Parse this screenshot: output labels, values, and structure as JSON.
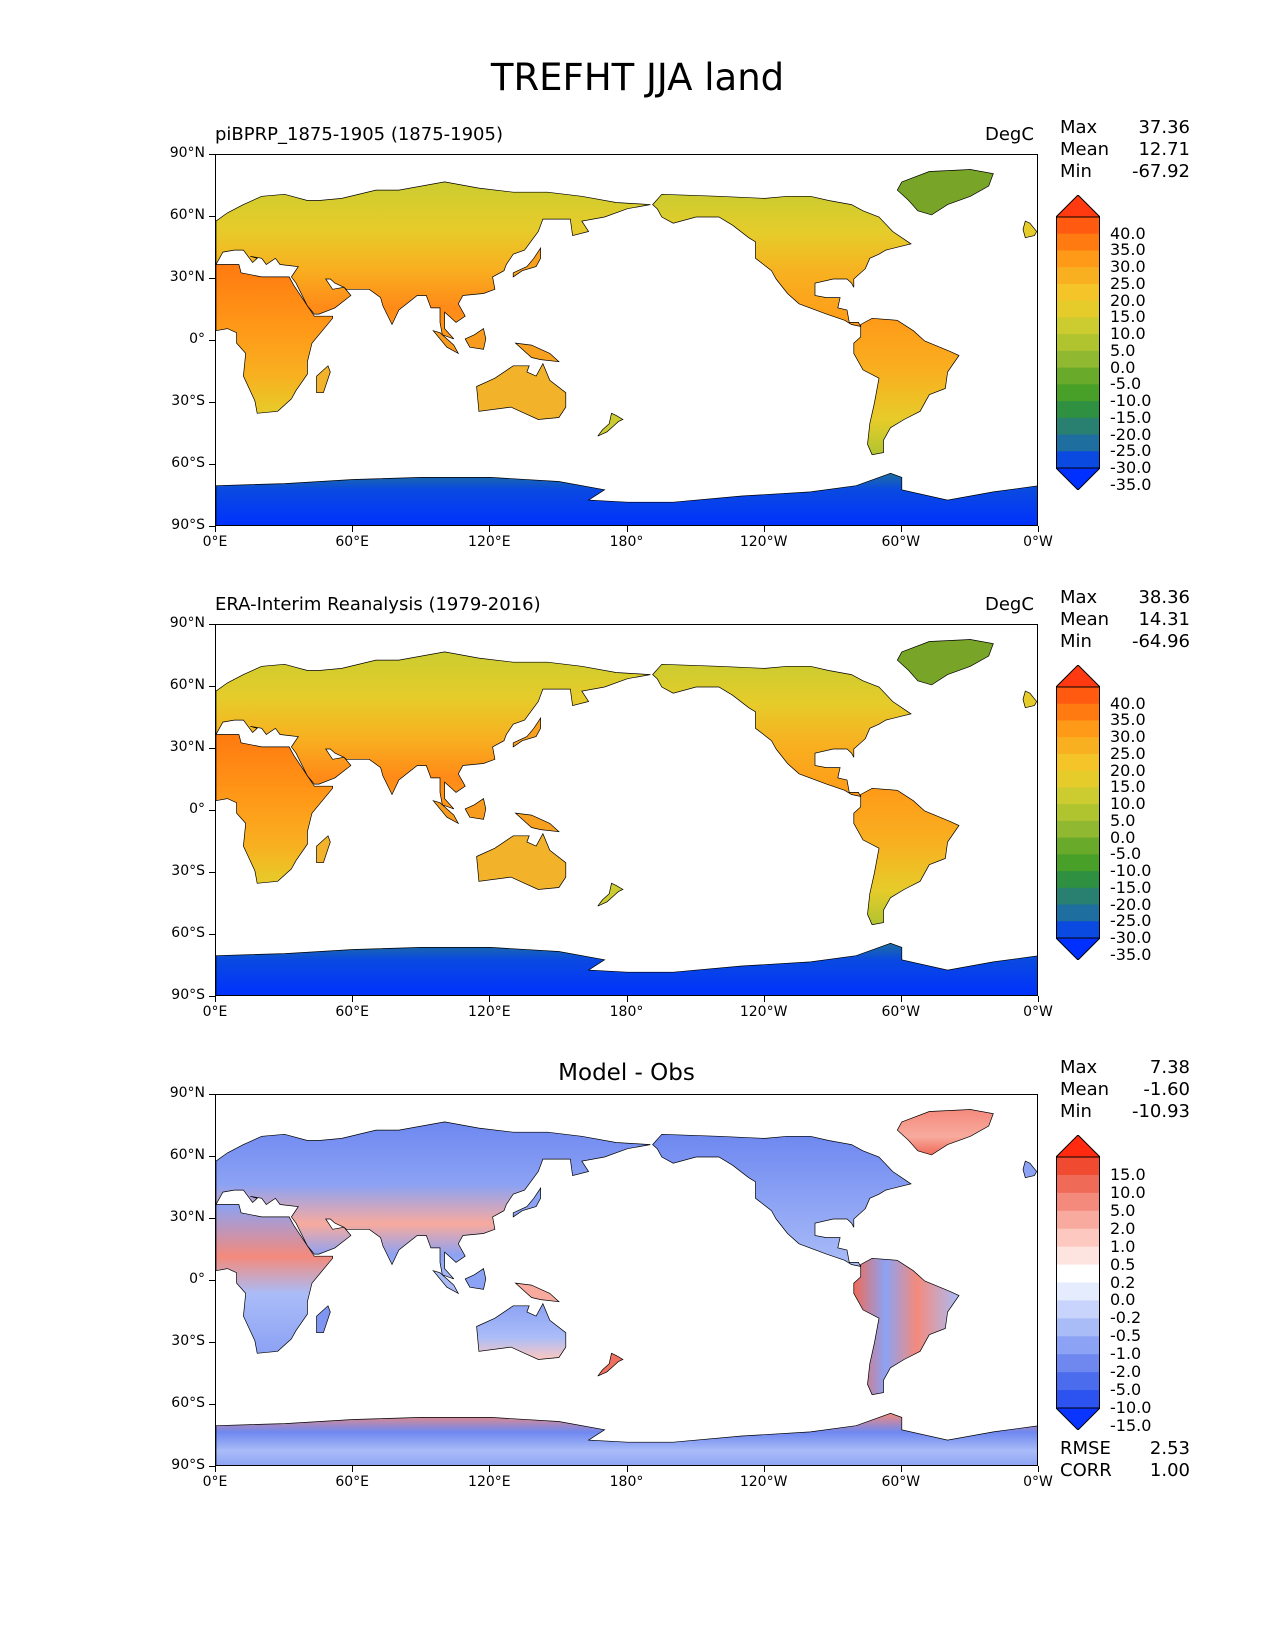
{
  "title": "TREFHT JJA land",
  "panels": [
    {
      "left_title": "piBPRP_1875-1905 (1875-1905)",
      "right_title": "DegC",
      "center_title": "",
      "stats": [
        {
          "key": "Max",
          "value": "37.36"
        },
        {
          "key": "Mean",
          "value": "12.71"
        },
        {
          "key": "Min",
          "value": "-67.92"
        }
      ],
      "extra_stats": [],
      "colorbar": {
        "labels": [
          "40.0",
          "35.0",
          "30.0",
          "25.0",
          "20.0",
          "15.0",
          "10.0",
          "5.0",
          "0.0",
          "-5.0",
          "-10.0",
          "-15.0",
          "-20.0",
          "-25.0",
          "-30.0",
          "-35.0"
        ],
        "colors": [
          "#ff3a10",
          "#ff5a10",
          "#ff7a10",
          "#ff9a18",
          "#f8b020",
          "#f4c428",
          "#e6cc2a",
          "#cccc30",
          "#b0c430",
          "#90b830",
          "#6aaa2a",
          "#48a028",
          "#2e9040",
          "#2a8070",
          "#1e6ea0",
          "#0a4ae0",
          "#0030ff"
        ]
      },
      "fill": "temp"
    },
    {
      "left_title": "ERA-Interim Reanalysis (1979-2016)",
      "right_title": "DegC",
      "center_title": "",
      "stats": [
        {
          "key": "Max",
          "value": "38.36"
        },
        {
          "key": "Mean",
          "value": "14.31"
        },
        {
          "key": "Min",
          "value": "-64.96"
        }
      ],
      "extra_stats": [],
      "colorbar": {
        "labels": [
          "40.0",
          "35.0",
          "30.0",
          "25.0",
          "20.0",
          "15.0",
          "10.0",
          "5.0",
          "0.0",
          "-5.0",
          "-10.0",
          "-15.0",
          "-20.0",
          "-25.0",
          "-30.0",
          "-35.0"
        ],
        "colors": [
          "#ff3a10",
          "#ff5a10",
          "#ff7a10",
          "#ff9a18",
          "#f8b020",
          "#f4c428",
          "#e6cc2a",
          "#cccc30",
          "#b0c430",
          "#90b830",
          "#6aaa2a",
          "#48a028",
          "#2e9040",
          "#2a8070",
          "#1e6ea0",
          "#0a4ae0",
          "#0030ff"
        ]
      },
      "fill": "temp"
    },
    {
      "left_title": "",
      "right_title": "",
      "center_title": "Model - Obs",
      "stats": [
        {
          "key": "Max",
          "value": "7.38"
        },
        {
          "key": "Mean",
          "value": "-1.60"
        },
        {
          "key": "Min",
          "value": "-10.93"
        }
      ],
      "extra_stats": [
        {
          "key": "RMSE",
          "value": "2.53"
        },
        {
          "key": "CORR",
          "value": "1.00"
        }
      ],
      "colorbar": {
        "labels": [
          "15.0",
          "10.0",
          "5.0",
          "2.0",
          "1.0",
          "0.5",
          "0.2",
          "0.0",
          "-0.2",
          "-0.5",
          "-1.0",
          "-2.0",
          "-5.0",
          "-10.0",
          "-15.0"
        ],
        "colors": [
          "#ff2a10",
          "#f04a30",
          "#f06a58",
          "#f48a7c",
          "#f8aa9e",
          "#fcc8c0",
          "#fde4e0",
          "#ffffff",
          "#e4ecfd",
          "#c8d4fb",
          "#aabcf8",
          "#8ca2f4",
          "#6e88f0",
          "#4c6cee",
          "#2c52f0",
          "#0a34ff"
        ]
      },
      "fill": "diff"
    }
  ],
  "axes": {
    "lat_labels": [
      "90°N",
      "60°N",
      "30°N",
      "0°",
      "30°S",
      "60°S",
      "90°S"
    ],
    "lon_labels": [
      "0°E",
      "60°E",
      "120°E",
      "180°",
      "120°W",
      "60°W",
      "0°W"
    ]
  }
}
